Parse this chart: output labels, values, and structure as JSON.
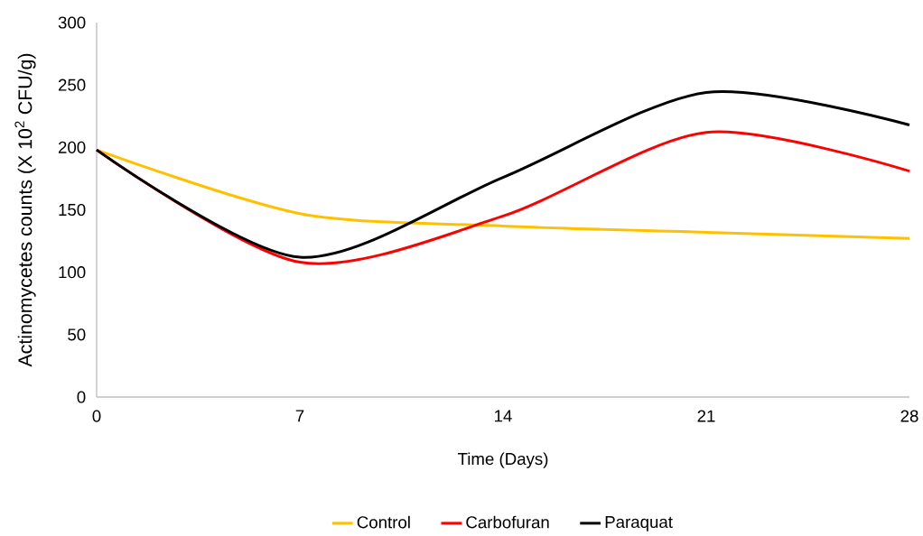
{
  "chart_data": {
    "type": "line",
    "xlabel": "Time (Days)",
    "ylabel": "Actinomycetes counts (X 10$^{2}$ CFU/g)",
    "x": [
      0,
      7,
      14,
      21,
      28
    ],
    "series": [
      {
        "name": "Control",
        "color": "#ffc000",
        "values": [
          198,
          147,
          137,
          132,
          127
        ]
      },
      {
        "name": "Carbofuran",
        "color": "#ff0000",
        "values": [
          198,
          108,
          145,
          212,
          181
        ]
      },
      {
        "name": "Paraquat",
        "color": "#000000",
        "values": [
          198,
          112,
          176,
          244,
          218
        ]
      }
    ],
    "xlim": [
      0,
      28
    ],
    "xticks": [
      0,
      7,
      14,
      21,
      28
    ],
    "ylim": [
      0,
      300
    ],
    "yticks": [
      0,
      50,
      100,
      150,
      200,
      250,
      300
    ],
    "grid": false,
    "legend": "bottom",
    "marker": "none",
    "line_style": "solid"
  }
}
